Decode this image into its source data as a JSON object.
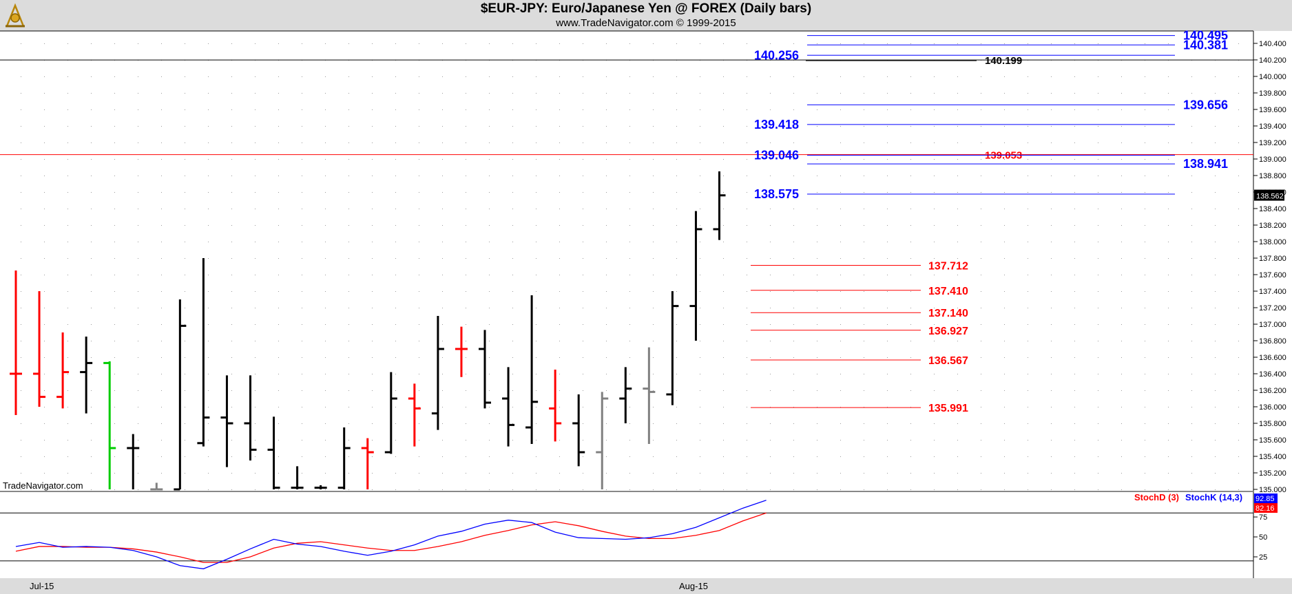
{
  "header": {
    "title": "$EUR-JPY:  Euro/Japanese Yen @ FOREX  (Daily bars)",
    "subtitle": "www.TradeNavigator.com © 1999-2015"
  },
  "watermark": "TradeNavigator.com",
  "x_labels": [
    "Jul-15",
    "Aug-15"
  ],
  "indicator_legend": {
    "stoch_d": "StochD (3)",
    "stoch_k": "StochK (14,3)"
  },
  "colors": {
    "up_bar": "#000000",
    "down_bar": "#ff0000",
    "neutral_bar": "#808080",
    "highlight_bar": "#00cc00",
    "fib_blue": "#0000ff",
    "fib_red": "#ff0000",
    "stoch_d": "#ff0000",
    "stoch_k": "#0000ff"
  },
  "chart_data": [
    {
      "type": "ohlc",
      "title": "$EUR-JPY:  Euro/Japanese Yen @ FOREX  (Daily bars)",
      "y_axis_ticks": [
        135.0,
        135.2,
        135.4,
        135.6,
        135.8,
        136.0,
        136.2,
        136.4,
        136.6,
        136.8,
        137.0,
        137.2,
        137.4,
        137.6,
        137.8,
        138.0,
        138.2,
        138.4,
        138.6,
        138.8,
        139.0,
        139.2,
        139.4,
        139.6,
        139.8,
        140.0,
        140.2,
        140.4
      ],
      "y_axis_tick_labels": [
        "135.000",
        "135.200",
        "135.400",
        "135.600",
        "135.800",
        "136.000",
        "136.200",
        "136.400",
        "136.600",
        "136.800",
        "137.000",
        "137.200",
        "137.400",
        "137.600",
        "137.800",
        "138.000",
        "138.200",
        "138.400",
        "138.600",
        "138.800",
        "139.000",
        "139.200",
        "139.400",
        "139.600",
        "139.800",
        "140.000",
        "140.200",
        "140.400"
      ],
      "ylim": [
        135.0,
        140.55
      ],
      "grid": true,
      "bars": [
        {
          "open": 136.4,
          "high": 137.65,
          "low": 135.9,
          "close": 136.4,
          "color": "down"
        },
        {
          "open": 136.4,
          "high": 137.4,
          "low": 136.0,
          "close": 136.12,
          "color": "down"
        },
        {
          "open": 136.12,
          "high": 136.9,
          "low": 135.98,
          "close": 136.42,
          "color": "down"
        },
        {
          "open": 136.42,
          "high": 136.85,
          "low": 135.92,
          "close": 136.53,
          "color": "up"
        },
        {
          "open": 136.53,
          "high": 136.55,
          "low": 135.0,
          "close": 135.5,
          "color": "highlight"
        },
        {
          "open": 135.5,
          "high": 135.67,
          "low": 135.0,
          "close": 135.5,
          "color": "up"
        },
        {
          "open": 135.0,
          "high": 135.08,
          "low": 135.0,
          "close": 135.0,
          "color": "neutral"
        },
        {
          "open": 135.0,
          "high": 137.3,
          "low": 135.0,
          "close": 136.98,
          "color": "up"
        },
        {
          "open": 135.56,
          "high": 137.8,
          "low": 135.52,
          "close": 135.87,
          "color": "up"
        },
        {
          "open": 135.87,
          "high": 136.38,
          "low": 135.27,
          "close": 135.8,
          "color": "up"
        },
        {
          "open": 135.8,
          "high": 136.38,
          "low": 135.35,
          "close": 135.48,
          "color": "up"
        },
        {
          "open": 135.48,
          "high": 135.88,
          "low": 135.0,
          "close": 135.02,
          "color": "up"
        },
        {
          "open": 135.02,
          "high": 135.28,
          "low": 135.0,
          "close": 135.02,
          "color": "up"
        },
        {
          "open": 135.02,
          "high": 135.05,
          "low": 135.0,
          "close": 135.02,
          "color": "up"
        },
        {
          "open": 135.02,
          "high": 135.75,
          "low": 135.0,
          "close": 135.5,
          "color": "up"
        },
        {
          "open": 135.5,
          "high": 135.62,
          "low": 135.0,
          "close": 135.45,
          "color": "down"
        },
        {
          "open": 135.45,
          "high": 136.42,
          "low": 135.43,
          "close": 136.1,
          "color": "up"
        },
        {
          "open": 136.1,
          "high": 136.28,
          "low": 135.52,
          "close": 135.98,
          "color": "down"
        },
        {
          "open": 135.92,
          "high": 137.1,
          "low": 135.72,
          "close": 136.7,
          "color": "up"
        },
        {
          "open": 136.7,
          "high": 136.97,
          "low": 136.36,
          "close": 136.7,
          "color": "down"
        },
        {
          "open": 136.7,
          "high": 136.93,
          "low": 135.98,
          "close": 136.05,
          "color": "up"
        },
        {
          "open": 136.1,
          "high": 136.48,
          "low": 135.52,
          "close": 135.78,
          "color": "up"
        },
        {
          "open": 135.75,
          "high": 137.35,
          "low": 135.55,
          "close": 136.06,
          "color": "up"
        },
        {
          "open": 135.98,
          "high": 136.45,
          "low": 135.58,
          "close": 135.8,
          "color": "down"
        },
        {
          "open": 135.8,
          "high": 136.15,
          "low": 135.28,
          "close": 135.45,
          "color": "up"
        },
        {
          "open": 135.45,
          "high": 136.18,
          "low": 135.0,
          "close": 136.1,
          "color": "neutral"
        },
        {
          "open": 136.1,
          "high": 136.48,
          "low": 135.8,
          "close": 136.22,
          "color": "up"
        },
        {
          "open": 136.22,
          "high": 136.72,
          "low": 135.55,
          "close": 136.18,
          "color": "neutral"
        },
        {
          "open": 136.15,
          "high": 137.4,
          "low": 136.02,
          "close": 137.22,
          "color": "up"
        },
        {
          "open": 137.22,
          "high": 138.37,
          "low": 136.8,
          "close": 138.15,
          "color": "up"
        },
        {
          "open": 138.15,
          "high": 138.85,
          "low": 138.02,
          "close": 138.56,
          "color": "up"
        }
      ],
      "horizontal_lines": [
        {
          "value": 140.199,
          "label": "140.199",
          "color": "black",
          "start_bar": -1,
          "end_bar": 34.6,
          "label_pos": "right-end"
        },
        {
          "value": 139.053,
          "label": "139.053",
          "color": "red",
          "start_bar": -1,
          "end_bar": 41.6,
          "label_pos": "over-line"
        }
      ],
      "fib_levels_blue": [
        {
          "value": 140.495,
          "label": "140.495",
          "start_bar": 28.5,
          "side": "right"
        },
        {
          "value": 140.381,
          "label": "140.381",
          "start_bar": 28.5,
          "side": "right"
        },
        {
          "value": 140.256,
          "label": "140.256",
          "start_bar": 28.5,
          "side": "left"
        },
        {
          "value": 139.656,
          "label": "139.656",
          "start_bar": 28.5,
          "side": "right"
        },
        {
          "value": 139.418,
          "label": "139.418",
          "start_bar": 28.5,
          "side": "left"
        },
        {
          "value": 139.046,
          "label": "139.046",
          "start_bar": 28.5,
          "side": "left"
        },
        {
          "value": 138.941,
          "label": "138.941",
          "start_bar": 28.5,
          "side": "right"
        },
        {
          "value": 138.575,
          "label": "138.575",
          "start_bar": 28.5,
          "side": "left"
        }
      ],
      "fib_levels_red": [
        {
          "value": 137.712,
          "label": "137.712"
        },
        {
          "value": 137.41,
          "label": "137.410"
        },
        {
          "value": 137.14,
          "label": "137.140"
        },
        {
          "value": 136.927,
          "label": "136.927"
        },
        {
          "value": 136.567,
          "label": "136.567"
        },
        {
          "value": 135.991,
          "label": "135.991"
        }
      ],
      "last_price": "138.562"
    },
    {
      "type": "line",
      "title": "",
      "ylim": [
        0,
        100
      ],
      "y_axis_ticks": [
        25,
        50,
        75
      ],
      "reference_lines": [
        20,
        80
      ],
      "series": [
        {
          "name": "StochD (3)",
          "color": "red",
          "values": [
            32,
            38,
            38,
            37,
            37,
            35,
            31,
            25,
            18,
            18,
            25,
            36,
            42,
            44,
            40,
            36,
            33,
            33,
            38,
            44,
            52,
            58,
            65,
            69,
            64,
            57,
            51,
            48,
            48,
            52,
            58,
            70,
            80
          ]
        },
        {
          "name": "StochK (14,3)",
          "color": "blue",
          "values": [
            38,
            43,
            37,
            38,
            37,
            33,
            25,
            14,
            10,
            22,
            35,
            47,
            41,
            38,
            32,
            27,
            32,
            40,
            51,
            57,
            66,
            71,
            68,
            56,
            49,
            48,
            47,
            49,
            54,
            62,
            74,
            86,
            96
          ]
        }
      ],
      "last_values": [
        "92.85",
        "82.16"
      ]
    }
  ]
}
